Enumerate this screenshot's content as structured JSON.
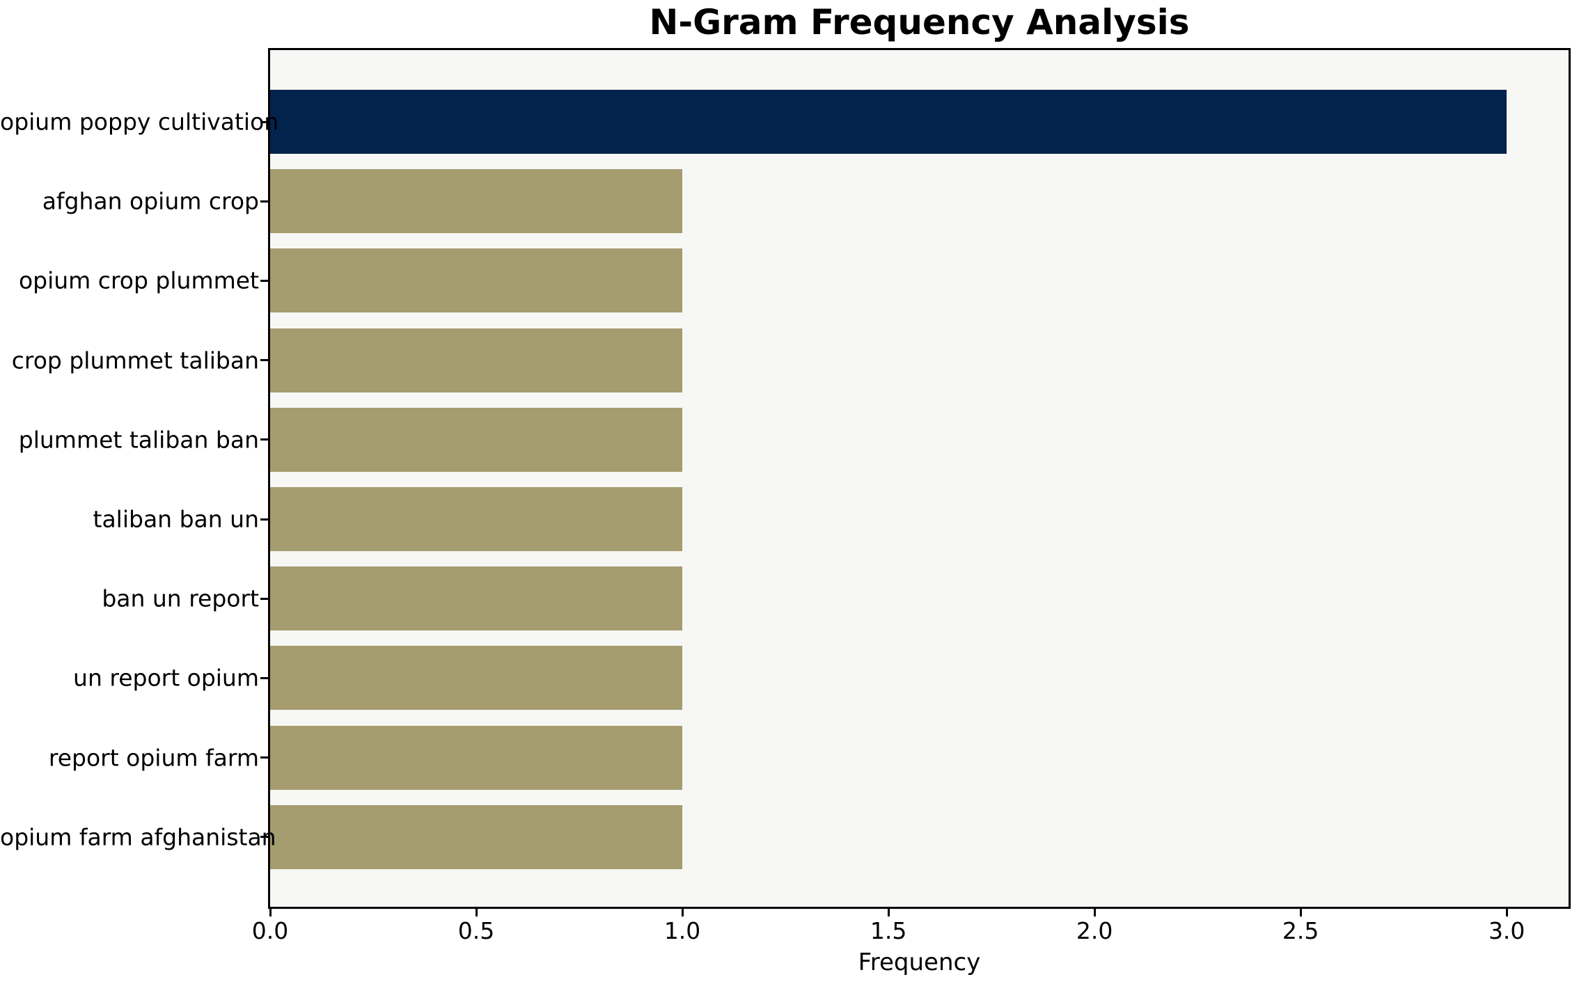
{
  "chart_data": {
    "type": "bar",
    "orientation": "horizontal",
    "title": "N-Gram Frequency Analysis",
    "xlabel": "Frequency",
    "ylabel": "",
    "categories": [
      "opium poppy cultivation",
      "afghan opium crop",
      "opium crop plummet",
      "crop plummet taliban",
      "plummet taliban ban",
      "taliban ban un",
      "ban un report",
      "un report opium",
      "report opium farm",
      "opium farm afghanistan"
    ],
    "values": [
      3,
      1,
      1,
      1,
      1,
      1,
      1,
      1,
      1,
      1
    ],
    "xlim": [
      0,
      3.15
    ],
    "xticks": [
      0.0,
      0.5,
      1.0,
      1.5,
      2.0,
      2.5,
      3.0
    ],
    "xtick_labels": [
      "0.0",
      "0.5",
      "1.0",
      "1.5",
      "2.0",
      "2.5",
      "3.0"
    ],
    "grid": false,
    "legend": null,
    "bar_colors": [
      "#02234C",
      "#A59C6F",
      "#A59C6F",
      "#A59C6F",
      "#A59C6F",
      "#A59C6F",
      "#A59C6F",
      "#A59C6F",
      "#A59C6F",
      "#A59C6F"
    ],
    "colors": {
      "highlight_bar": "#02234C",
      "default_bar": "#A59C6F",
      "plot_background": "#F7F7F5",
      "figure_background": "#FFFFFF",
      "spine": "#000000",
      "text": "#000000"
    }
  }
}
